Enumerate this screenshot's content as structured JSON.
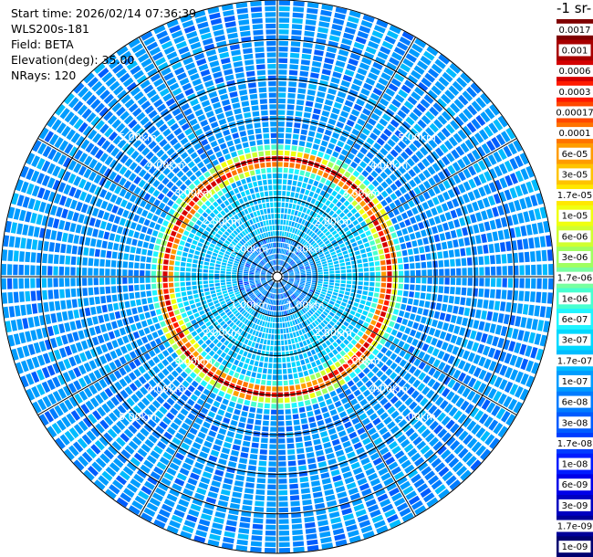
{
  "info": {
    "start_time": "Start time: 2026/02/14 07:36:39",
    "instrument": "WLS200s-181",
    "field": "Field: BETA",
    "elevation": "Elevation(deg): 35.00",
    "nrays": "NRays: 120"
  },
  "colorbar": {
    "title": "-1 sr-",
    "labels": [
      "0.0017",
      "0.001",
      "0.0006",
      "0.0003",
      "0.00017",
      "0.0001",
      "6e-05",
      "3e-05",
      "1.7e-05",
      "1e-05",
      "6e-06",
      "3e-06",
      "1.7e-06",
      "1e-06",
      "6e-07",
      "3e-07",
      "1.7e-07",
      "1e-07",
      "6e-08",
      "3e-08",
      "1.7e-08",
      "1e-08",
      "6e-09",
      "3e-09",
      "1.7e-09",
      "1e-09"
    ],
    "colors": [
      "#7f0000",
      "#a80000",
      "#d40000",
      "#ff1a00",
      "#ff4800",
      "#ff7300",
      "#ff9c00",
      "#ffc400",
      "#ffe800",
      "#f0ff10",
      "#d0ff30",
      "#a0ff60",
      "#78ffa0",
      "#48ffd0",
      "#20f4ff",
      "#00d8ff",
      "#00bcff",
      "#009cff",
      "#007cff",
      "#005cff",
      "#003cff",
      "#001cff",
      "#0000e8",
      "#0000c0",
      "#000098",
      "#000070"
    ]
  },
  "chart_data": {
    "type": "heatmap",
    "projection": "polar PPI",
    "field": "BETA",
    "elevation_deg": 35.0,
    "n_rays": 120,
    "range_rings_km": [
      1.0,
      2.0,
      3.0,
      4.0,
      5.0
    ],
    "ring_labels": [
      "1.00km",
      "2.00km",
      "3.00km",
      "4.00km",
      "5.00km"
    ],
    "spokes_deg": [
      0,
      30,
      60,
      90,
      120,
      150,
      180,
      210,
      240,
      270,
      300,
      330
    ],
    "max_range_km": 7.0,
    "high_backscatter_ring_km": 2.9,
    "colorscale": "log",
    "cmin": 1e-09,
    "cmax": 0.0017
  }
}
